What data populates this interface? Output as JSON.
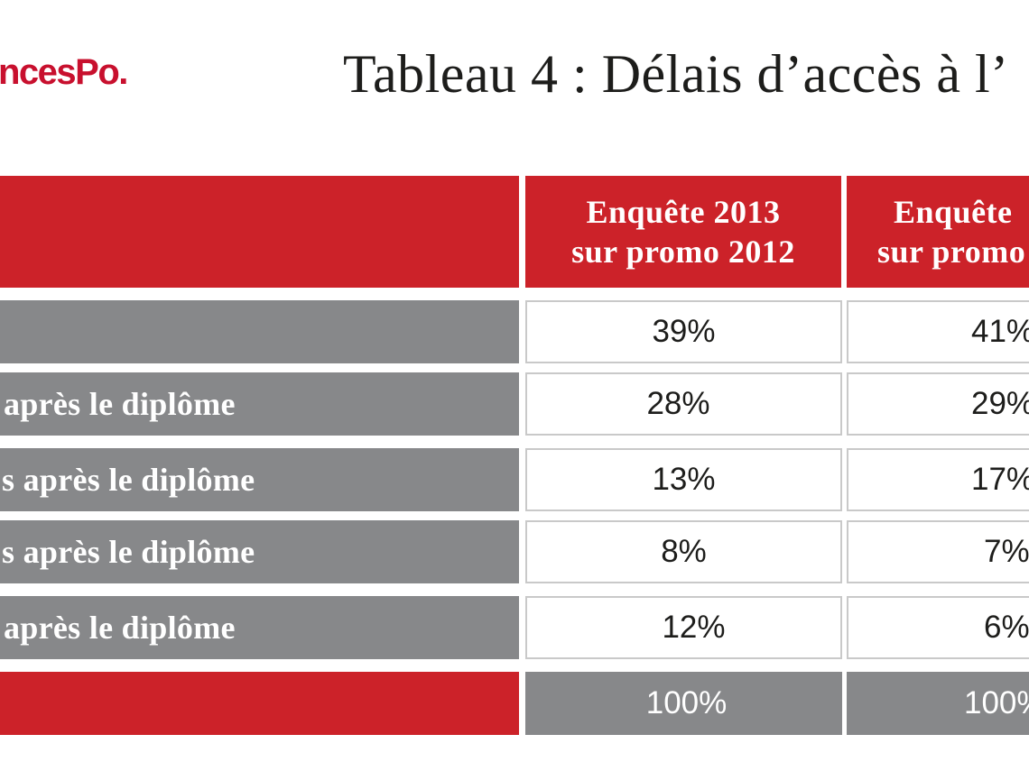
{
  "logo": {
    "text": "ncesPo."
  },
  "title": "Tableau 4 : Délais d’accès à l’",
  "colors": {
    "red": "#cc2229",
    "grey": "#87888a",
    "text": "#1d1d1b"
  },
  "table": {
    "headers": [
      {
        "line1": "Enquête 2013",
        "line2": "sur promo 2012"
      },
      {
        "line1": "Enquête",
        "line2": "sur promo"
      }
    ],
    "rows": [
      {
        "label": "",
        "values": [
          "39%",
          "41%"
        ]
      },
      {
        "label": "après le diplôme",
        "values": [
          "28%",
          "29%"
        ]
      },
      {
        "label": "s après le diplôme",
        "values": [
          "13%",
          "17%"
        ]
      },
      {
        "label": "s après le diplôme",
        "values": [
          "8%",
          "7%"
        ]
      },
      {
        "label": "après le diplôme",
        "values": [
          "12%",
          "6%"
        ]
      }
    ],
    "total": {
      "label": "",
      "values": [
        "100%",
        "100%"
      ]
    }
  }
}
